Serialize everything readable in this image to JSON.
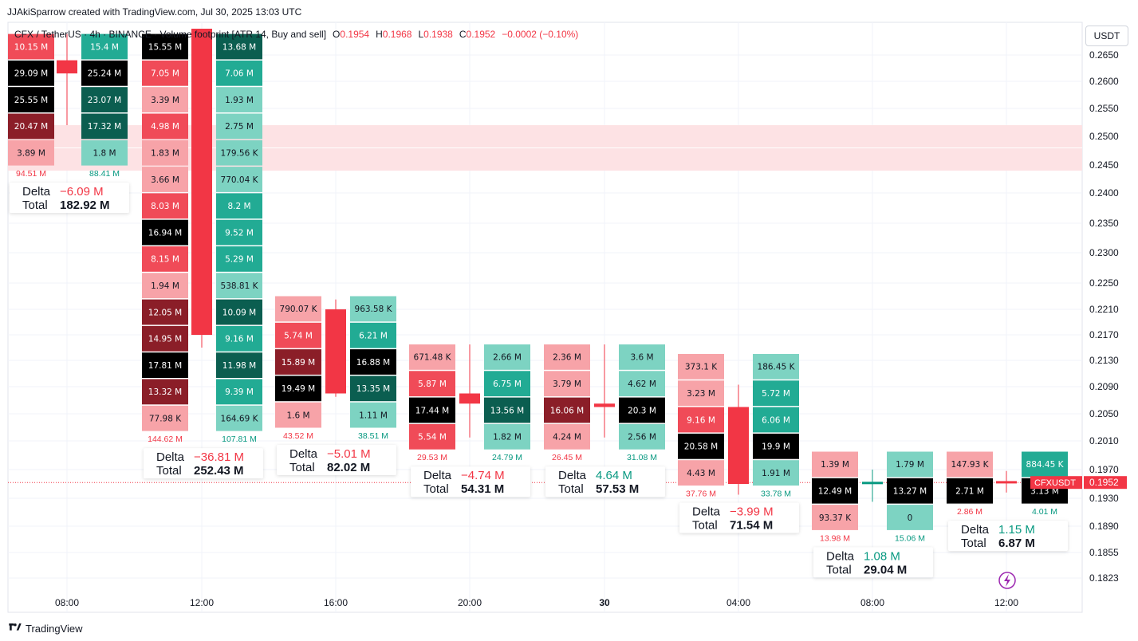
{
  "header": {
    "text": "JJAkiSparrow created with TradingView.com, Jul 30, 2025 13:03 UTC"
  },
  "legend": {
    "title": "CFX / TetherUS · 4h · BINANCE · Volume footprint [ATR 14, Buy and sell]",
    "open_label": "O",
    "open": "0.1954",
    "high_label": "H",
    "high": "0.1968",
    "low_label": "L",
    "low": "0.1938",
    "close_label": "C",
    "close": "0.1952",
    "change": "−0.0002 (−0.10%)"
  },
  "price_axis": {
    "unit": "USDT"
  },
  "footer": {
    "brand": "TradingView"
  },
  "colors": {
    "up": "#089981",
    "down": "#f23645",
    "zone": "#fde2e4",
    "grid": "#f0f3fa"
  },
  "chart_data": {
    "type": "footprint",
    "symbol_label": "CFXUSDT",
    "last_price": "0.1952",
    "y_ticks": [
      "0.2650",
      "0.2600",
      "0.2550",
      "0.2500",
      "0.2450",
      "0.2400",
      "0.2350",
      "0.2300",
      "0.2250",
      "0.2210",
      "0.2170",
      "0.2130",
      "0.2090",
      "0.2050",
      "0.2010",
      "0.1970",
      "0.1930",
      "0.1890",
      "0.1855",
      "0.1823"
    ],
    "x_ticks": [
      "08:00",
      "12:00",
      "16:00",
      "20:00",
      "30",
      "04:00",
      "08:00",
      "12:00"
    ],
    "zone": {
      "from": 0.244,
      "to": 0.252
    },
    "candles": [
      {
        "open": 0.264,
        "high": 0.269,
        "low": 0.252,
        "close": 0.2615,
        "row_top": 0.269,
        "sell": [
          "10.15 M",
          "29.09 M",
          "25.55 M",
          "20.47 M",
          "3.89 M"
        ],
        "buy": [
          "15.4 M",
          "25.24 M",
          "23.07 M",
          "17.32 M",
          "1.8 M"
        ],
        "sell_total": "94.51 M",
        "buy_total": "88.41 M",
        "delta": "−6.09 M",
        "total": "182.92 M"
      },
      {
        "open": 0.27,
        "high": 0.27,
        "low": 0.215,
        "close": 0.217,
        "row_top": 0.269,
        "sell": [
          "15.55 M",
          "7.05 M",
          "3.39 M",
          "4.98 M",
          "1.83 M",
          "3.66 M",
          "8.03 M",
          "16.94 M",
          "8.15 M",
          "1.94 M",
          "12.05 M",
          "14.95 M",
          "17.81 M",
          "13.32 M",
          "77.98 K"
        ],
        "buy": [
          "13.68 M",
          "7.06 M",
          "1.93 M",
          "2.75 M",
          "179.56 K",
          "770.04 K",
          "8.2 M",
          "9.52 M",
          "5.29 M",
          "538.81 K",
          "10.09 M",
          "9.16 M",
          "11.98 M",
          "9.39 M",
          "164.69 K"
        ],
        "sell_total": "144.62 M",
        "buy_total": "107.81 M",
        "delta": "−36.81 M",
        "total": "252.43 M"
      },
      {
        "open": 0.221,
        "high": 0.2225,
        "low": 0.2075,
        "close": 0.208,
        "row_top": 0.223,
        "sell": [
          "790.07 K",
          "5.74 M",
          "15.89 M",
          "19.49 M",
          "1.6 M"
        ],
        "buy": [
          "963.58 K",
          "6.21 M",
          "16.88 M",
          "13.35 M",
          "1.11 M"
        ],
        "sell_total": "43.52 M",
        "buy_total": "38.51 M",
        "delta": "−5.01 M",
        "total": "82.02 M"
      },
      {
        "open": 0.208,
        "high": 0.2155,
        "low": 0.2015,
        "close": 0.2065,
        "row_top": 0.2155,
        "sell": [
          "671.48 K",
          "5.87 M",
          "17.44 M",
          "5.54 M"
        ],
        "buy": [
          "2.66 M",
          "6.75 M",
          "13.56 M",
          "1.82 M"
        ],
        "sell_total": "29.53 M",
        "buy_total": "24.79 M",
        "delta": "−4.74 M",
        "total": "54.31 M"
      },
      {
        "open": 0.2065,
        "high": 0.2155,
        "low": 0.2015,
        "close": 0.206,
        "row_top": 0.2155,
        "sell": [
          "2.36 M",
          "3.79 M",
          "16.06 M",
          "4.24 M"
        ],
        "buy": [
          "3.6 M",
          "4.62 M",
          "20.3 M",
          "2.56 M"
        ],
        "sell_total": "26.45 M",
        "buy_total": "31.08 M",
        "delta": "4.64 M",
        "total": "57.53 M"
      },
      {
        "open": 0.206,
        "high": 0.2093,
        "low": 0.1935,
        "close": 0.195,
        "row_top": 0.214,
        "sell": [
          "373.1 K",
          "3.23 M",
          "9.16 M",
          "20.58 M",
          "4.43 M"
        ],
        "buy": [
          "186.45 K",
          "5.72 M",
          "6.06 M",
          "19.9 M",
          "1.91 M"
        ],
        "sell_total": "37.76 M",
        "buy_total": "33.78 M",
        "delta": "−3.99 M",
        "total": "71.54 M"
      },
      {
        "open": 0.195,
        "high": 0.197,
        "low": 0.1925,
        "close": 0.1953,
        "row_top": 0.1995,
        "sell": [
          "1.39 M",
          "12.49 M",
          "93.37 K"
        ],
        "buy": [
          "1.79 M",
          "13.27 M",
          "0"
        ],
        "sell_total": "13.98 M",
        "buy_total": "15.06 M",
        "delta": "1.08 M",
        "total": "29.04 M"
      },
      {
        "open": 0.1954,
        "high": 0.1968,
        "low": 0.1938,
        "close": 0.1952,
        "row_top": 0.1995,
        "sell": [
          "147.93 K",
          "2.71 M"
        ],
        "buy": [
          "884.45 K",
          "3.13 M"
        ],
        "sell_total": "2.86 M",
        "buy_total": "4.01 M",
        "delta": "1.15 M",
        "total": "6.87 M"
      }
    ]
  }
}
